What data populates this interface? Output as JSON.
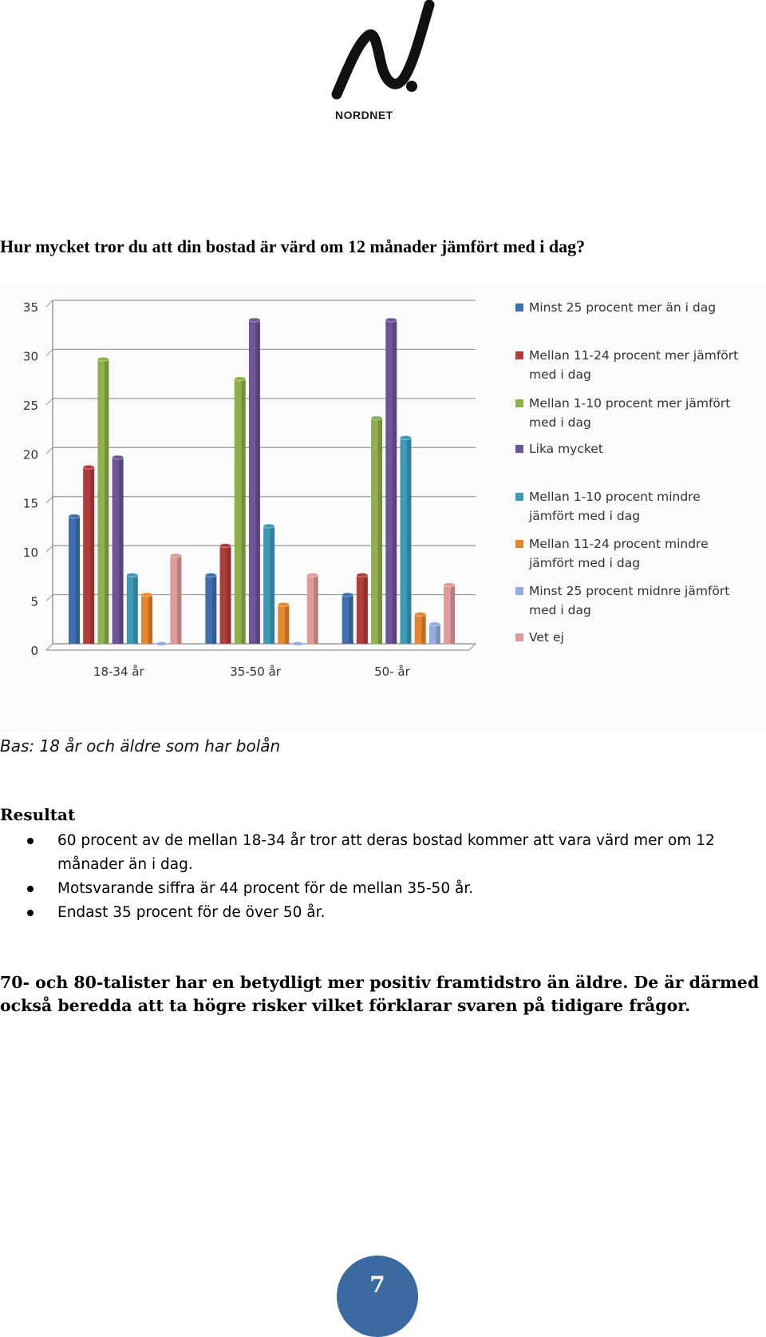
{
  "logo": {
    "brand": "NORDNET",
    "icon": "nordnet-n-logo"
  },
  "question": "Hur mycket tror du att din bostad är värd om 12 månader jämfört med i dag?",
  "chart_data": {
    "type": "bar",
    "categories": [
      "18-34 år",
      "35-50 år",
      "50- år"
    ],
    "y_ticks": [
      "0",
      "5",
      "10",
      "15",
      "20",
      "25",
      "30",
      "35"
    ],
    "ylim": [
      0,
      35
    ],
    "grid": true,
    "legend_position": "right",
    "series": [
      {
        "name": "Minst 25 procent mer än i dag",
        "name_lines": [
          "Minst 25 procent mer än i dag"
        ],
        "color": "#3e6fb0",
        "values": [
          13,
          7,
          5
        ]
      },
      {
        "name": "Mellan 11-24 procent mer jämfört med i dag",
        "name_lines": [
          "Mellan 11-24 procent mer jämfört",
          "med i dag"
        ],
        "color": "#b23c3a",
        "values": [
          18,
          10,
          7
        ]
      },
      {
        "name": "Mellan 1-10 procent mer jämfört med i dag",
        "name_lines": [
          "Mellan 1-10 procent mer jämfört",
          "med i dag"
        ],
        "color": "#8fb04a",
        "values": [
          29,
          27,
          23
        ]
      },
      {
        "name": "Lika mycket",
        "name_lines": [
          "Lika mycket"
        ],
        "color": "#6e5497",
        "values": [
          19,
          33,
          33
        ]
      },
      {
        "name": "Mellan 1-10 procent mindre jämfört med i dag",
        "name_lines": [
          "Mellan 1-10 procent mindre",
          "jämfört med i dag"
        ],
        "color": "#3c9ab6",
        "values": [
          7,
          12,
          21
        ]
      },
      {
        "name": "Mellan 11-24 procent mindre jämfört med i dag",
        "name_lines": [
          "Mellan 11-24 procent mindre",
          "jämfört med i dag"
        ],
        "color": "#e8862d",
        "values": [
          5,
          4,
          3
        ]
      },
      {
        "name": "Minst 25 procent midnre jämfört med i dag",
        "name_lines": [
          "Minst 25 procent midnre jämfört",
          "med i dag"
        ],
        "color": "#95aee0",
        "values": [
          0,
          0,
          2
        ]
      },
      {
        "name": "Vet ej",
        "name_lines": [
          "Vet ej"
        ],
        "color": "#df9a9a",
        "values": [
          9,
          7,
          6
        ]
      }
    ]
  },
  "base_note": "Bas: 18 år och äldre som har bolån",
  "results": {
    "heading": "Resultat",
    "items": [
      "60 procent av de mellan 18-34 år tror att deras bostad kommer att vara värd mer om 12 månader än i dag.",
      "Motsvarande siffra är 44 procent för de mellan 35-50 år.",
      "Endast 35 procent för de över 50 år."
    ]
  },
  "conclusion": "70- och 80-talister har en betydligt mer positiv framtidstro än äldre. De är därmed också beredda att ta högre risker vilket förklarar svaren på tidigare frågor.",
  "page_number": "7",
  "colors": {
    "badge": "#3a6aa0",
    "chart_bg": "#fbfbfb"
  }
}
